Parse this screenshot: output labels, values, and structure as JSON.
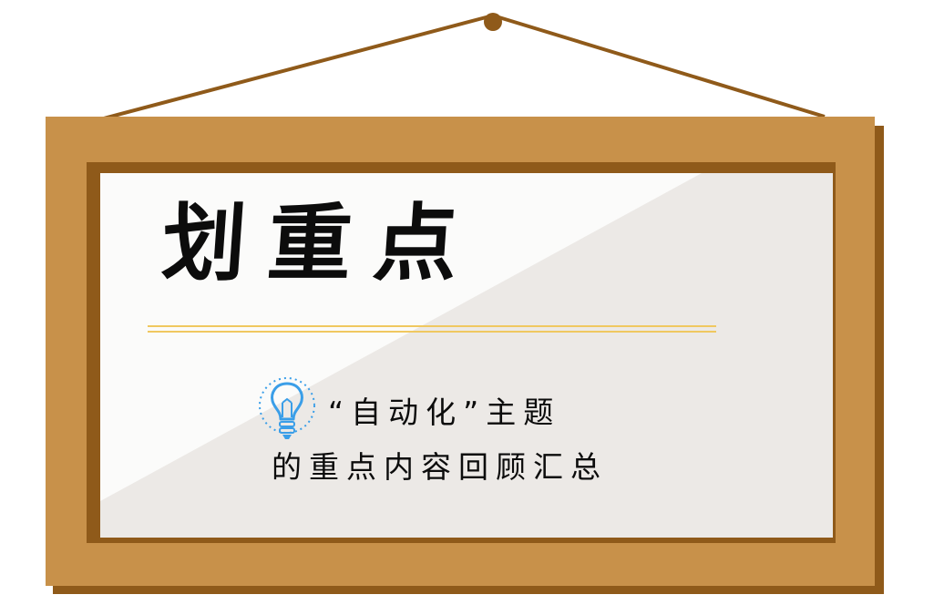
{
  "title": "划重点",
  "subtitle_line1": "“自动化”主题",
  "subtitle_line2": "的重点内容回顾汇总",
  "icons": {
    "bulb": "lightbulb-icon",
    "hanger": "hanging-wire-icon"
  },
  "colors": {
    "frame": "#c8914a",
    "frame_dark": "#8f5a1a",
    "board": "#f3f2f1",
    "board_shade": "#ebe8e5",
    "rule": "#f0c860",
    "bulb": "#3a9ee8",
    "text": "#0c0c0c"
  }
}
